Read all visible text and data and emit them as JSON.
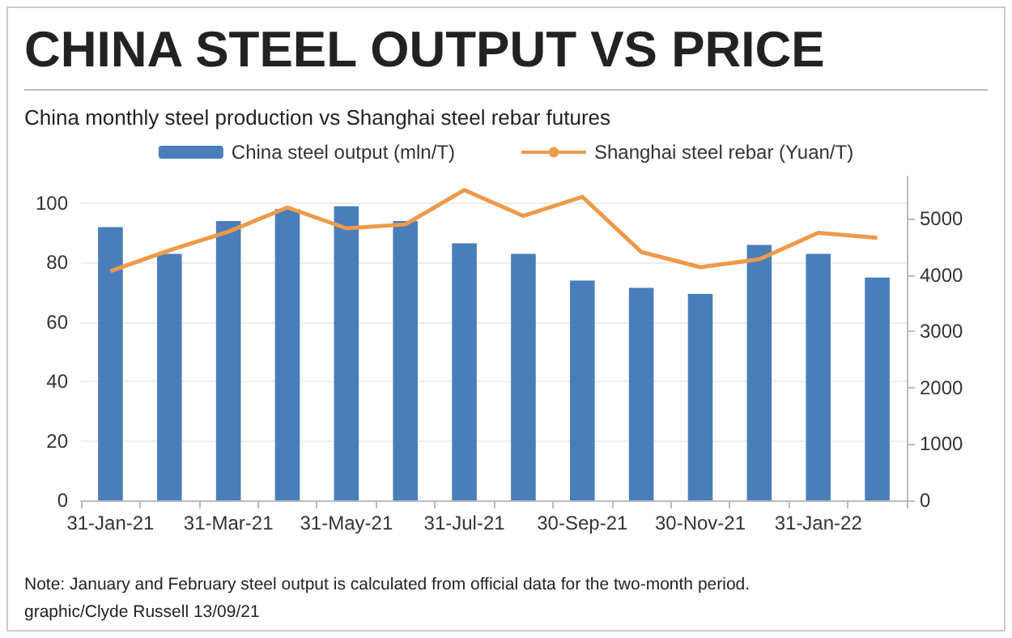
{
  "chart_data": {
    "type": "bar",
    "title": "CHINA STEEL OUTPUT VS PRICE",
    "subtitle": "China monthly steel production vs Shanghai steel rebar futures",
    "categories": [
      "31-Jan-21",
      null,
      "31-Mar-21",
      null,
      "31-May-21",
      null,
      "31-Jul-21",
      null,
      "30-Sep-21",
      null,
      "30-Nov-21",
      null,
      "31-Jan-22",
      null
    ],
    "series": [
      {
        "name": "China steel output (mln/T)",
        "color": "#4a7ebb",
        "values": [
          92,
          83,
          94,
          98,
          99,
          94,
          86.5,
          83,
          74,
          71.5,
          69.5,
          86,
          83,
          75
        ]
      },
      {
        "name": "Shanghai steel rebar (Yuan/T)",
        "type": "line",
        "axis": "y2",
        "color": "#ed9a4a",
        "values": [
          4070,
          4440,
          4770,
          5200,
          4830,
          4900,
          5510,
          5050,
          5390,
          4410,
          4140,
          4280,
          4750,
          4660
        ]
      }
    ],
    "ylim": [
      0,
      109
    ],
    "yticks": [
      0,
      20,
      40,
      60,
      80,
      100
    ],
    "y2lim": [
      0,
      5750
    ],
    "y2ticks": [
      0,
      1000,
      2000,
      3000,
      4000,
      5000
    ],
    "grid": "y",
    "legend": "top",
    "marker": "none",
    "line_style": "solid",
    "annotations": [
      "Note: January and February steel output is calculated from official data for the two-month period.",
      "graphic/Clyde Russell 13/09/21"
    ]
  }
}
